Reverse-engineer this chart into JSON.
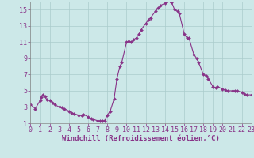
{
  "x": [
    0,
    0.5,
    1,
    1.1,
    1.3,
    1.5,
    1.7,
    2,
    2.3,
    2.5,
    3,
    3.3,
    3.5,
    4,
    4.3,
    4.5,
    5,
    5.3,
    5.5,
    6,
    6.3,
    6.5,
    7,
    7.2,
    7.5,
    7.7,
    8,
    8.3,
    8.7,
    9,
    9.3,
    9.5,
    10,
    10.2,
    10.5,
    10.7,
    11,
    11.3,
    11.5,
    12,
    12.3,
    12.5,
    13,
    13.3,
    13.5,
    14,
    14.2,
    14.5,
    14.7,
    15,
    15.3,
    15.5,
    16,
    16.3,
    16.5,
    17,
    17.3,
    17.5,
    18,
    18.3,
    18.5,
    19,
    19.3,
    19.5,
    20,
    20.3,
    20.5,
    21,
    21.3,
    21.5,
    22,
    22.3,
    22.5,
    23
  ],
  "y": [
    3.3,
    2.8,
    3.8,
    4.2,
    4.5,
    4.3,
    3.9,
    3.8,
    3.5,
    3.3,
    3.0,
    2.9,
    2.8,
    2.5,
    2.3,
    2.2,
    2.0,
    2.0,
    2.1,
    1.8,
    1.6,
    1.5,
    1.3,
    1.3,
    1.3,
    1.3,
    2.0,
    2.5,
    4.0,
    6.5,
    8.0,
    8.5,
    11.0,
    11.1,
    11.0,
    11.3,
    11.5,
    12.0,
    12.5,
    13.3,
    13.8,
    14.0,
    14.8,
    15.2,
    15.5,
    15.8,
    16.0,
    16.1,
    15.9,
    15.0,
    14.8,
    14.5,
    12.0,
    11.5,
    11.5,
    9.5,
    9.0,
    8.5,
    7.0,
    6.8,
    6.5,
    5.5,
    5.4,
    5.5,
    5.2,
    5.1,
    5.0,
    5.0,
    5.0,
    5.0,
    4.8,
    4.6,
    4.5,
    4.5
  ],
  "line_color": "#883388",
  "marker": "D",
  "marker_size": 2.0,
  "bg_color": "#cce8e8",
  "grid_color": "#aacccc",
  "xlabel": "Windchill (Refroidissement éolien,°C)",
  "xlim": [
    0,
    23
  ],
  "ylim": [
    1,
    16
  ],
  "xticks": [
    0,
    1,
    2,
    3,
    4,
    5,
    6,
    7,
    8,
    9,
    10,
    11,
    12,
    13,
    14,
    15,
    16,
    17,
    18,
    19,
    20,
    21,
    22,
    23
  ],
  "yticks": [
    1,
    3,
    5,
    7,
    9,
    11,
    13,
    15
  ],
  "label_fontsize": 6.5,
  "tick_fontsize": 6.0
}
